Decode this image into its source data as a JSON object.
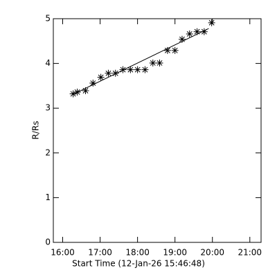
{
  "chart_data": {
    "type": "scatter",
    "x_label": "Start Time (12-Jan-26 15:46:48)",
    "y_label": "R/Rs",
    "x": [
      16.28,
      16.39,
      16.61,
      16.81,
      17.02,
      17.22,
      17.41,
      17.61,
      17.81,
      18.0,
      18.2,
      18.41,
      18.59,
      18.8,
      19.0,
      19.19,
      19.39,
      19.59,
      19.78,
      19.98
    ],
    "values": [
      3.32,
      3.36,
      3.39,
      3.56,
      3.69,
      3.78,
      3.78,
      3.86,
      3.86,
      3.86,
      3.86,
      4.01,
      4.01,
      4.29,
      4.29,
      4.54,
      4.66,
      4.71,
      4.71,
      4.91
    ],
    "fit": {
      "x": [
        16.28,
        19.9
      ],
      "values": [
        3.31,
        4.78
      ]
    },
    "color": "#000000",
    "xlim": [
      15.75,
      21.3
    ],
    "ylim": [
      0,
      5
    ],
    "xticks": [
      {
        "value": 16,
        "label": "16:00"
      },
      {
        "value": 17,
        "label": "17:00"
      },
      {
        "value": 18,
        "label": "18:00"
      },
      {
        "value": 19,
        "label": "19:00"
      },
      {
        "value": 20,
        "label": "20:00"
      },
      {
        "value": 21,
        "label": "21:00"
      }
    ],
    "yticks": [
      0,
      1,
      2,
      3,
      4,
      5
    ]
  }
}
